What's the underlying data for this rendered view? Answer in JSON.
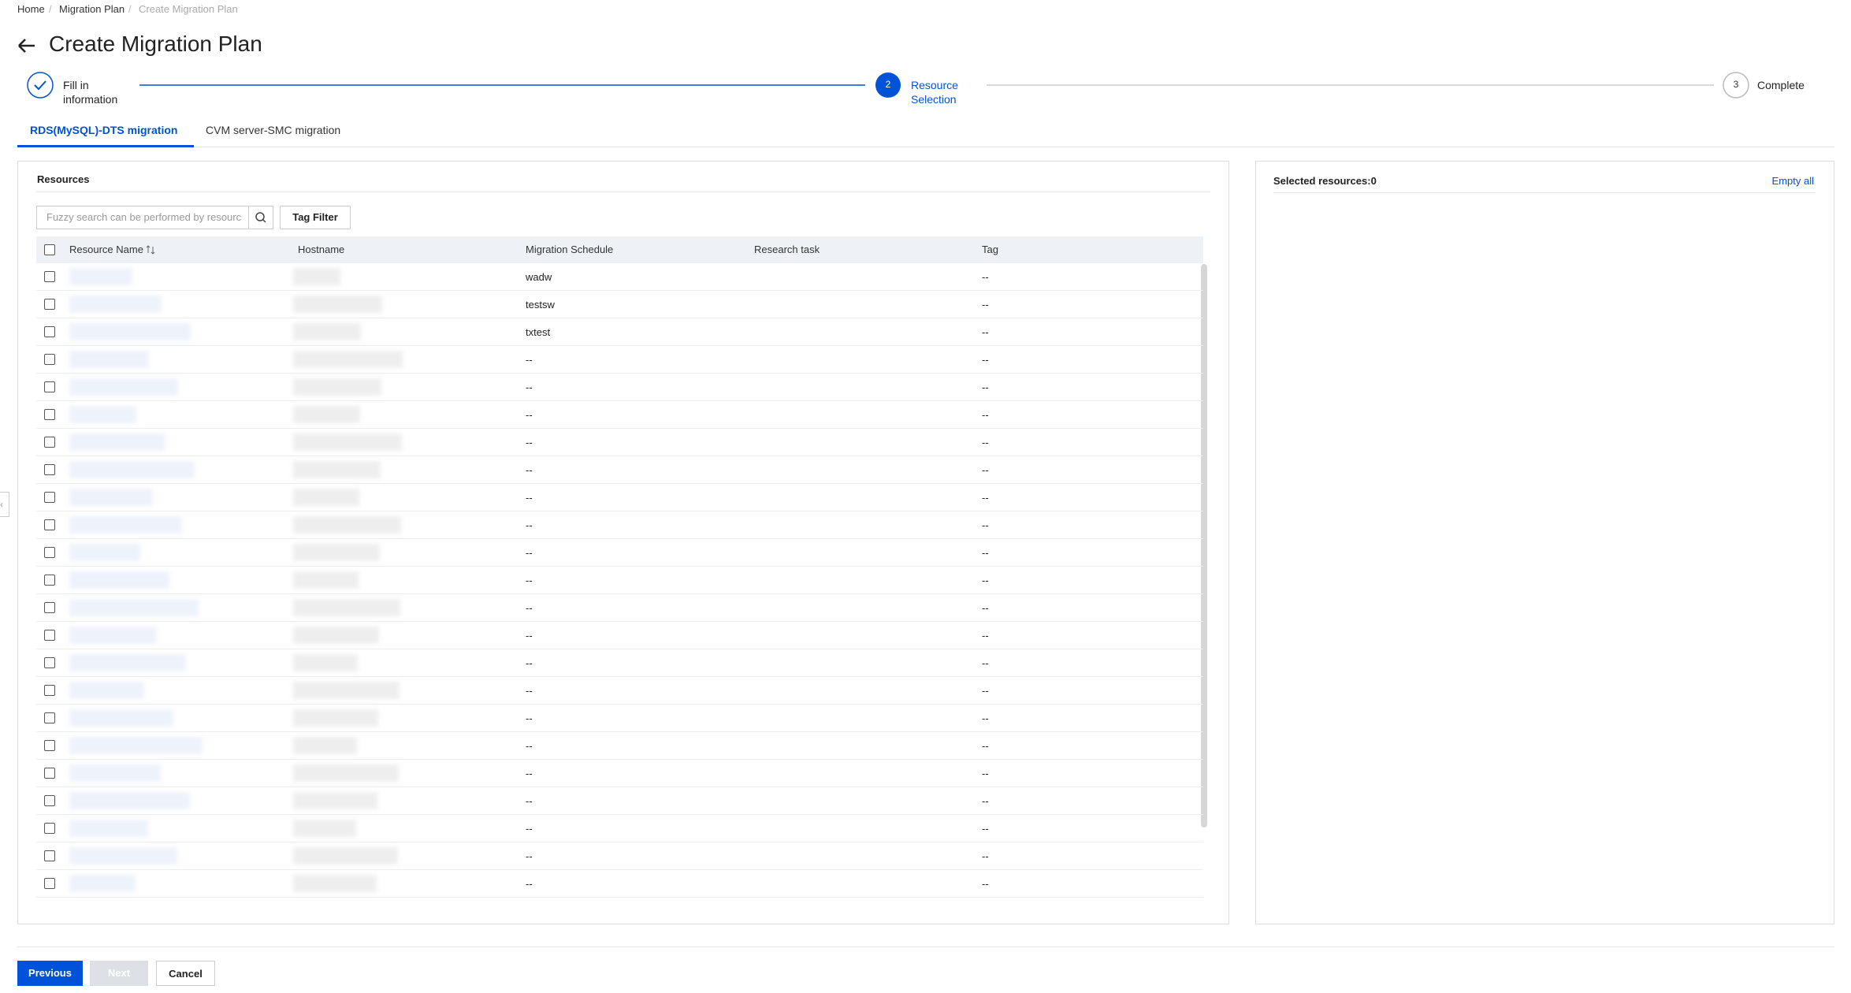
{
  "breadcrumb": [
    "Home",
    "Migration Plan",
    "Create Migration Plan"
  ],
  "title": "Create Migration Plan",
  "steps": [
    {
      "label": "Fill in information"
    },
    {
      "number": "2",
      "label": "Resource Selection"
    },
    {
      "number": "3",
      "label": "Complete"
    }
  ],
  "tabs": [
    "RDS(MySQL)-DTS migration",
    "CVM server-SMC migration"
  ],
  "resources_panel": {
    "title": "Resources",
    "search_placeholder": "Fuzzy search can be performed by resourc",
    "tag_filter": "Tag Filter",
    "columns": [
      "Resource Name",
      "Hostname",
      "Migration Schedule",
      "Research task",
      "Tag"
    ],
    "rows": [
      {
        "schedule": "wadw",
        "tag": "--"
      },
      {
        "schedule": "testsw",
        "tag": "--"
      },
      {
        "schedule": "txtest",
        "tag": "--"
      },
      {
        "schedule": "--",
        "tag": "--"
      },
      {
        "schedule": "--",
        "tag": "--"
      },
      {
        "schedule": "--",
        "tag": "--"
      },
      {
        "schedule": "--",
        "tag": "--"
      },
      {
        "schedule": "--",
        "tag": "--"
      },
      {
        "schedule": "--",
        "tag": "--"
      },
      {
        "schedule": "--",
        "tag": "--"
      },
      {
        "schedule": "--",
        "tag": "--"
      },
      {
        "schedule": "--",
        "tag": "--"
      },
      {
        "schedule": "--",
        "tag": "--"
      },
      {
        "schedule": "--",
        "tag": "--"
      },
      {
        "schedule": "--",
        "tag": "--"
      },
      {
        "schedule": "--",
        "tag": "--"
      },
      {
        "schedule": "--",
        "tag": "--"
      },
      {
        "schedule": "--",
        "tag": "--"
      },
      {
        "schedule": "--",
        "tag": "--"
      },
      {
        "schedule": "--",
        "tag": "--"
      },
      {
        "schedule": "--",
        "tag": "--"
      },
      {
        "schedule": "--",
        "tag": "--"
      },
      {
        "schedule": "--",
        "tag": "--"
      }
    ]
  },
  "selected_panel": {
    "title": "Selected resources:0",
    "empty_all": "Empty all"
  },
  "buttons": [
    "Previous",
    "Next",
    "Cancel"
  ]
}
